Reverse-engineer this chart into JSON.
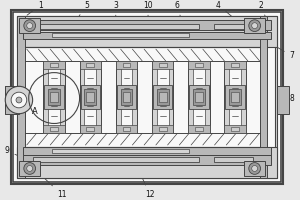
{
  "bg_color": "#e8e8e8",
  "line_color": "#444444",
  "fill_light": "#d4d4d4",
  "fill_mid": "#b8b8b8",
  "fill_dark": "#999999",
  "fill_white": "#f8f8f8",
  "fill_grey": "#cccccc",
  "label_color": "#111111"
}
